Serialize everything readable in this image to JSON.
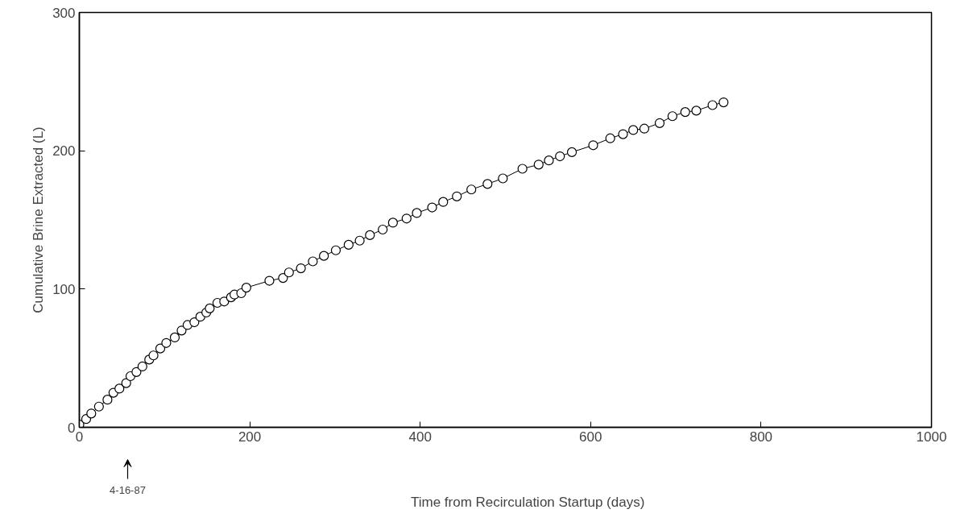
{
  "chart_data": {
    "type": "line",
    "xlabel": "Time from Recirculation Startup  (days)",
    "ylabel": "Cumulative Brine Extracted (L)",
    "x": [
      0,
      8,
      14,
      23,
      33,
      40,
      47,
      55,
      60,
      67,
      74,
      82,
      87,
      95,
      102,
      112,
      120,
      127,
      135,
      142,
      149,
      153,
      162,
      170,
      178,
      182,
      190,
      196,
      223,
      239,
      246,
      260,
      274,
      287,
      301,
      316,
      329,
      341,
      356,
      368,
      384,
      396,
      414,
      427,
      443,
      460,
      479,
      497,
      520,
      539,
      551,
      564,
      578,
      603,
      623,
      638,
      650,
      663,
      681,
      696,
      711,
      724,
      743,
      756
    ],
    "series": [
      {
        "color": "#000000",
        "values": [
          2,
          6,
          10,
          15,
          20,
          25,
          28,
          32,
          37,
          40,
          44,
          49,
          52,
          57,
          61,
          65,
          70,
          74,
          76,
          80,
          83,
          86,
          90,
          91,
          94,
          96,
          97,
          101,
          106,
          108,
          112,
          115,
          120,
          124,
          128,
          132,
          135,
          139,
          143,
          148,
          151,
          155,
          159,
          163,
          167,
          172,
          176,
          180,
          187,
          190,
          193,
          196,
          199,
          204,
          209,
          212,
          215,
          216,
          220,
          225,
          228,
          229,
          233,
          235
        ]
      }
    ],
    "xlim": [
      0,
      1000
    ],
    "ylim": [
      0,
      300
    ],
    "xticks": [
      0,
      200,
      400,
      600,
      800,
      1000
    ],
    "yticks": [
      0,
      100,
      200,
      300
    ],
    "marker": "circle",
    "line_style": "solid",
    "grid": false,
    "annotations": [
      "4-16-87"
    ]
  }
}
